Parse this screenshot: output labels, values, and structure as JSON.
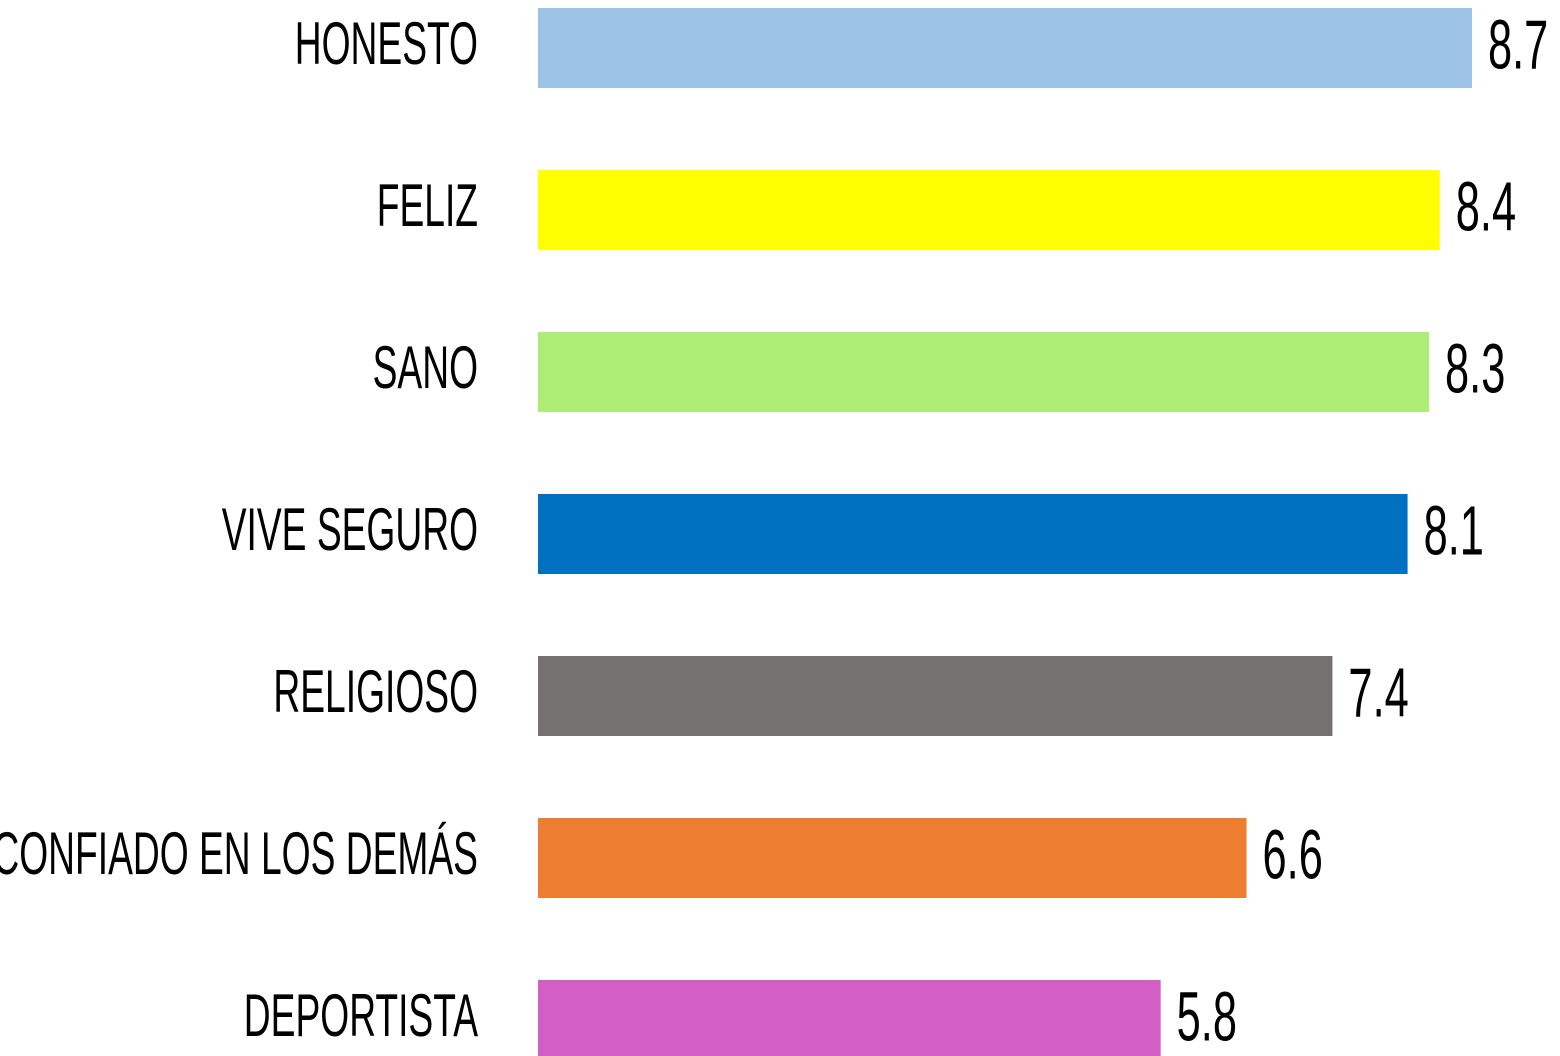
{
  "chart_data": {
    "type": "bar",
    "orientation": "horizontal",
    "categories": [
      "HONESTO",
      "FELIZ",
      "SANO",
      "VIVE SEGURO",
      "RELIGIOSO",
      "CONFIADO EN LOS DEMÁS",
      "DEPORTISTA"
    ],
    "values": [
      8.7,
      8.4,
      8.3,
      8.1,
      7.4,
      6.6,
      5.8
    ],
    "colors": [
      "#9dc3e6",
      "#ffff00",
      "#aeed75",
      "#0070c0",
      "#767171",
      "#ed7d31",
      "#d35fc5"
    ]
  }
}
